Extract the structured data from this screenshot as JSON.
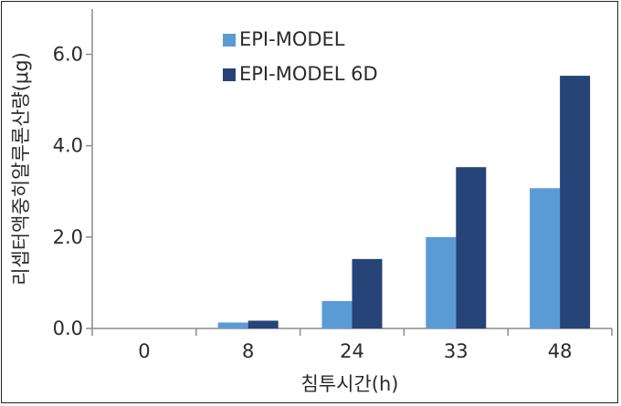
{
  "chart_data": {
    "type": "bar",
    "title": "",
    "xlabel": "침투시간(h)",
    "ylabel": "리셉터액중히알루론산량(μg)",
    "categories": [
      "0",
      "8",
      "24",
      "33",
      "48"
    ],
    "series": [
      {
        "name": "EPI-MODEL",
        "color": "#5b9bd5",
        "values": [
          0.0,
          0.13,
          0.6,
          2.0,
          3.07
        ]
      },
      {
        "name": "EPI-MODEL 6D",
        "color": "#264478",
        "values": [
          0.0,
          0.17,
          1.52,
          3.53,
          5.53
        ]
      }
    ],
    "ylim": [
      0,
      7
    ],
    "yticks": [
      "0.0",
      "2.0",
      "4.0",
      "6.0"
    ],
    "ytick_values": [
      0,
      2,
      4,
      6
    ],
    "grid": false,
    "legend_position": "top-center"
  }
}
